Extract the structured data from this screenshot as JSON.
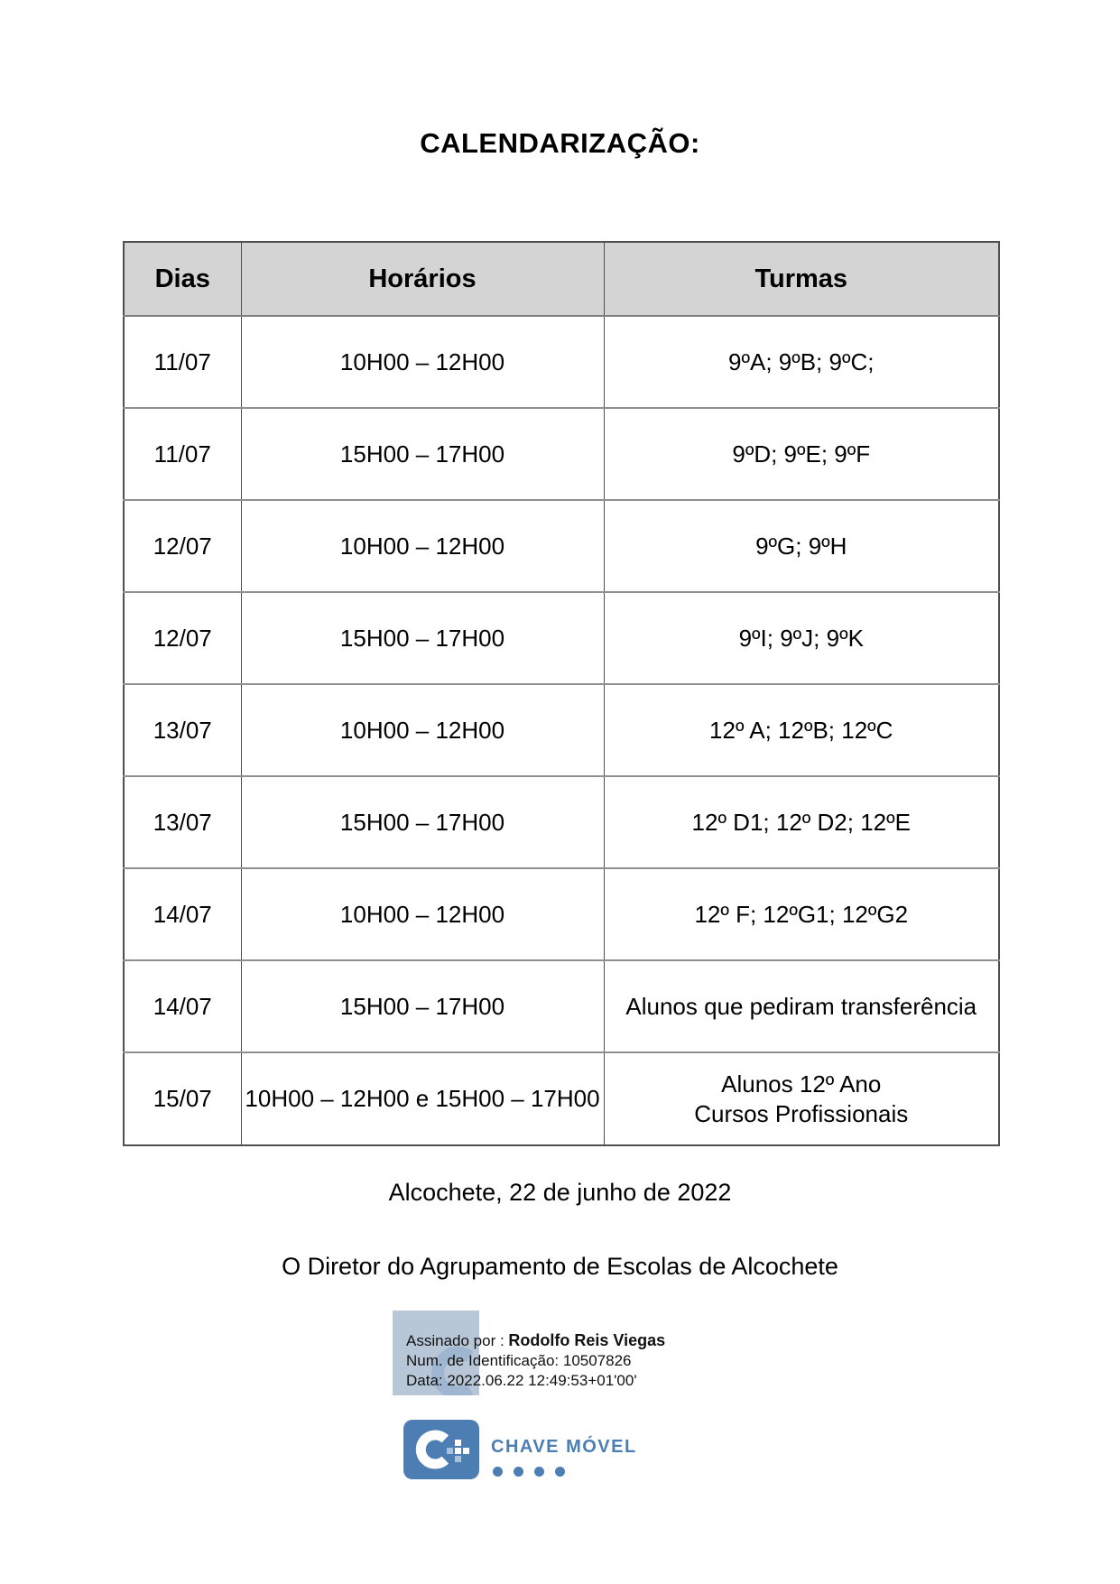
{
  "page": {
    "title": "CALENDARIZAÇÃO:"
  },
  "table": {
    "headers": [
      "Dias",
      "Horários",
      "Turmas"
    ],
    "rows": [
      {
        "dia": "11/07",
        "horario": "10H00 – 12H00",
        "turmas_lines": [
          "9ºA; 9ºB; 9ºC;"
        ]
      },
      {
        "dia": "11/07",
        "horario": "15H00 – 17H00",
        "turmas_lines": [
          "9ºD; 9ºE; 9ºF"
        ]
      },
      {
        "dia": "12/07",
        "horario": "10H00 – 12H00",
        "turmas_lines": [
          "9ºG; 9ºH"
        ]
      },
      {
        "dia": "12/07",
        "horario": "15H00 – 17H00",
        "turmas_lines": [
          "9ºI; 9ºJ; 9ºK"
        ]
      },
      {
        "dia": "13/07",
        "horario": "10H00 – 12H00",
        "turmas_lines": [
          "12º A; 12ºB; 12ºC"
        ]
      },
      {
        "dia": "13/07",
        "horario": "15H00 – 17H00",
        "turmas_lines": [
          "12º D1; 12º D2; 12ºE"
        ]
      },
      {
        "dia": "14/07",
        "horario": "10H00 – 12H00",
        "turmas_lines": [
          "12º F; 12ºG1; 12ºG2"
        ]
      },
      {
        "dia": "14/07",
        "horario": "15H00 – 17H00",
        "turmas_lines": [
          "Alunos que pediram transferência"
        ]
      },
      {
        "dia": "15/07",
        "horario": "10H00 – 12H00 e 15H00 – 17H00",
        "turmas_lines": [
          "Alunos 12º Ano",
          "Cursos Profissionais"
        ]
      }
    ]
  },
  "footer": {
    "date_line": "Alcochete, 22 de junho de 2022",
    "director_line": "O Diretor do Agrupamento de Escolas de Alcochete"
  },
  "signature": {
    "signed_by_label": "Assinado por :  ",
    "signed_by_name": "Rodolfo Reis Viegas",
    "id_line": "Num. de Identificação: 10507826",
    "date_line": "Data: 2022.06.22 12:49:53+01'00'"
  },
  "logo": {
    "brand": "CHAVE MÓVEL",
    "accent_blue": "#4d7eb3",
    "watermark_bg": "#b8c7d8",
    "header_bg": "#d4d4d4"
  }
}
